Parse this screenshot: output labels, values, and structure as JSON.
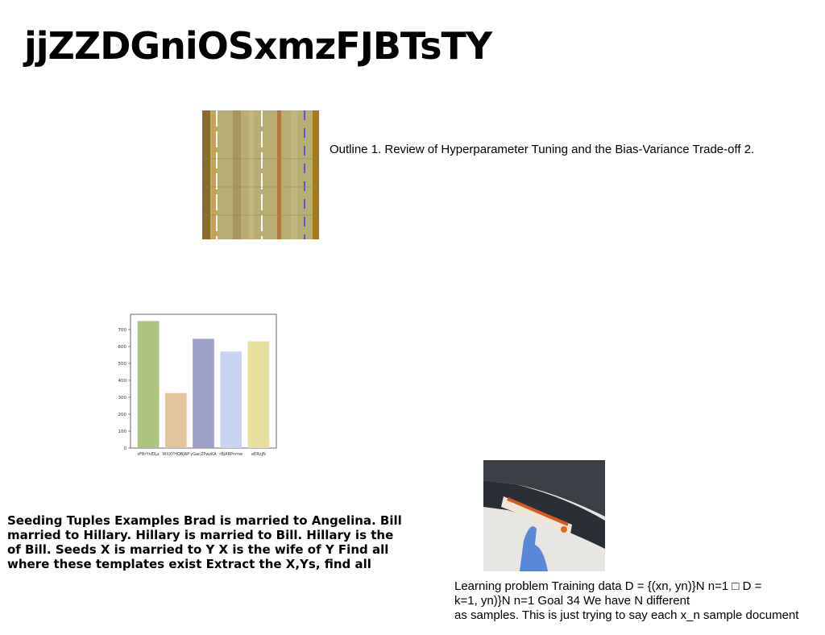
{
  "title": "jjZZDGniOSxmzFJBTsTY",
  "caption_1": "Outline 1. Review of Hyperparameter Tuning and the Bias-Variance Trade-off 2.",
  "bold_text": [
    "Seeding Tuples Examples Brad is married to Angelina. Bill",
    "married to Hillary. Hillary is married to Bill. Hillary is the",
    "of Bill. Seeds X is married to Y X is the wife of Y Find all",
    "where these templates exist Extract the X,Ys, find all"
  ],
  "caption_2": [
    "Learning problem Training data D = {(xn, yn)}N n=1 □ D =",
    "k=1, yn)}N n=1 Goal 34 We have N different",
    "as samples. This is just trying to say each x_n sample document"
  ],
  "chart_data": {
    "type": "bar",
    "categories": [
      "sFBrYnElLz",
      "WXXYHOBJAP",
      "yGacZPwzKA",
      "rBJARPnmw",
      "eERxjN"
    ],
    "values": [
      750,
      325,
      645,
      570,
      630
    ],
    "colors": [
      "#adc47e",
      "#e4c49a",
      "#9da0c8",
      "#c9d3f2",
      "#e8df9e"
    ],
    "ylim": [
      0,
      790
    ],
    "yticks": [
      0,
      100,
      200,
      300,
      400,
      500,
      600,
      700
    ]
  }
}
